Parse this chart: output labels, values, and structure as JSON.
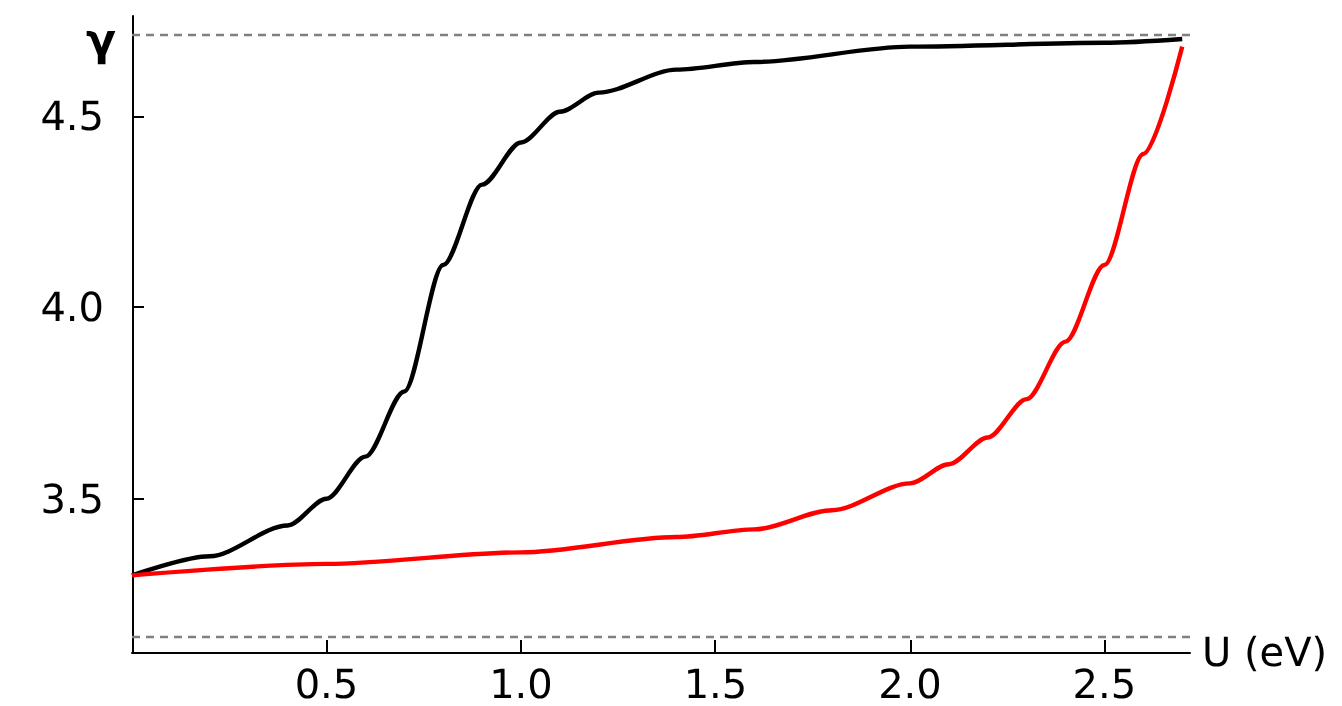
{
  "chart_data": {
    "type": "line",
    "xlabel": "U (eV)",
    "ylabel": "γ",
    "xlim": [
      0,
      2.72
    ],
    "xticks": [
      0.5,
      {
        "value": 1,
        "label": "1.0"
      },
      1.5,
      {
        "value": 2,
        "label": "2.0"
      },
      2.5
    ],
    "ylim": [
      3.1,
      4.76
    ],
    "yticks": [
      3.5,
      {
        "value": 4,
        "label": "4.0"
      },
      4.5
    ],
    "grid": false,
    "marker": "none",
    "line_style": "solid",
    "ref_lines": [
      {
        "axis": "y",
        "value": 4.71,
        "color": "#808080",
        "line_style": "dashed"
      },
      {
        "axis": "y",
        "value": 3.14,
        "color": "#808080",
        "line_style": "dashed"
      }
    ],
    "series": [
      {
        "color": "#000000",
        "x": [
          0,
          0.2,
          0.4,
          0.5,
          0.6,
          0.7,
          0.8,
          0.9,
          1.0,
          1.1,
          1.2,
          1.4,
          1.6,
          2.0,
          2.5,
          2.7
        ],
        "values": [
          3.3,
          3.35,
          3.43,
          3.5,
          3.61,
          3.78,
          4.11,
          4.32,
          4.43,
          4.51,
          4.56,
          4.62,
          4.64,
          4.68,
          4.69,
          4.7
        ]
      },
      {
        "color": "#ff0000",
        "x": [
          0,
          0.5,
          1.0,
          1.4,
          1.6,
          1.8,
          2.0,
          2.1,
          2.2,
          2.3,
          2.4,
          2.5,
          2.6,
          2.7
        ],
        "values": [
          3.3,
          3.33,
          3.36,
          3.4,
          3.42,
          3.47,
          3.54,
          3.59,
          3.66,
          3.76,
          3.91,
          4.11,
          4.4,
          4.68
        ]
      }
    ]
  }
}
